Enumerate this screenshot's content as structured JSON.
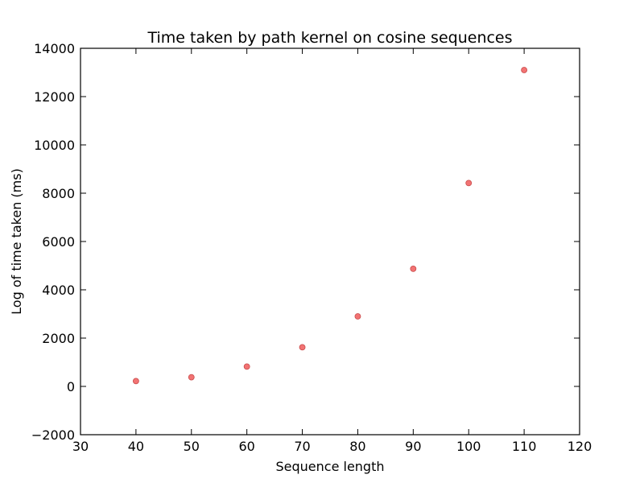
{
  "chart_data": {
    "type": "scatter",
    "title": "Time taken by path kernel on cosine sequences",
    "xlabel": "Sequence length",
    "ylabel": "Log of time taken (ms)",
    "xlim": [
      30,
      120
    ],
    "ylim": [
      -2000,
      14000
    ],
    "x_ticks": [
      "30",
      "40",
      "50",
      "60",
      "70",
      "80",
      "90",
      "100",
      "110",
      "120"
    ],
    "y_ticks": [
      "−2000",
      "0",
      "2000",
      "4000",
      "6000",
      "8000",
      "10000",
      "12000",
      "14000"
    ],
    "grid": false,
    "legend": "none",
    "marker_color": "#f05a5a",
    "series": [
      {
        "x": [
          40,
          50,
          60,
          70,
          80,
          90,
          100,
          110
        ],
        "y": [
          220,
          380,
          820,
          1620,
          2900,
          4870,
          8420,
          13100
        ]
      }
    ]
  }
}
